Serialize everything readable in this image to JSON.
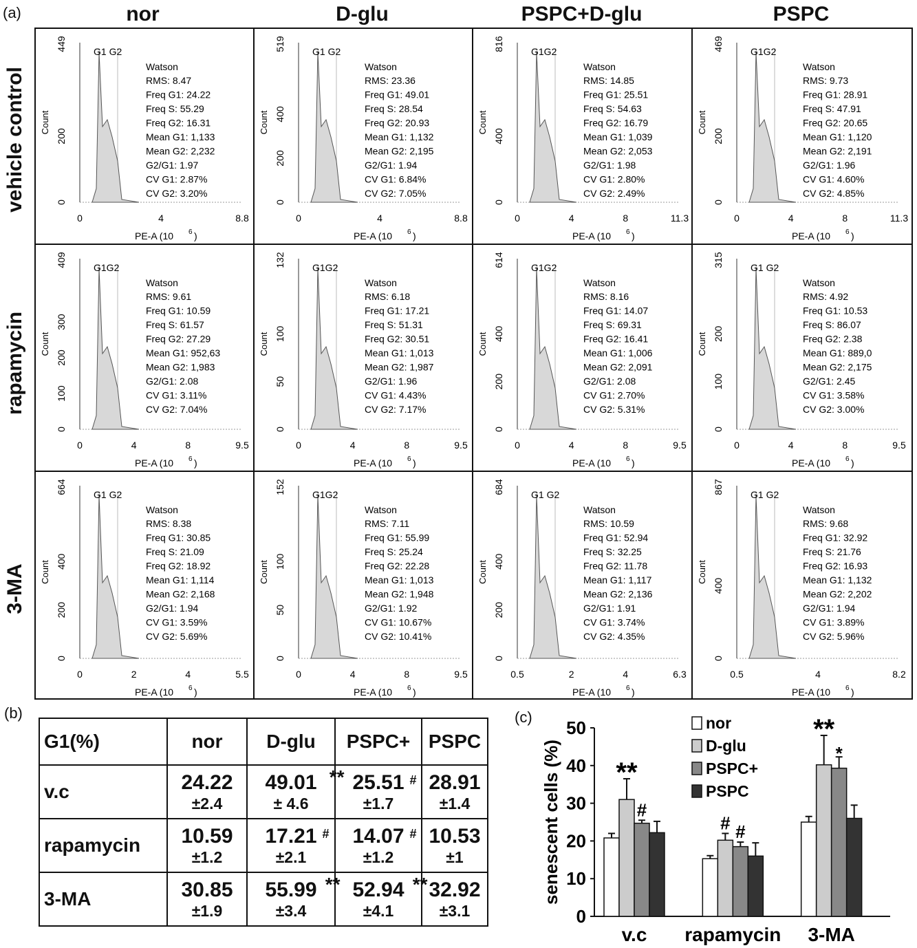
{
  "panel_labels": {
    "a": "(a)",
    "b": "(b)",
    "c": "(c)"
  },
  "columns": [
    "nor",
    "D-glu",
    "PSPC+D-glu",
    "PSPC"
  ],
  "rows": [
    "vehicle control",
    "rapamycin",
    "3-MA"
  ],
  "histogram_common": {
    "y_label": "Count",
    "x_label": "PE-A  (10",
    "x_exp": "6",
    "x_close": ")",
    "model": "Watson"
  },
  "histograms": [
    [
      {
        "ymax": "449",
        "yticks": [
          "200",
          "0"
        ],
        "xticks": [
          "0",
          "4",
          "8.8"
        ],
        "peaks": "G1 G2",
        "stats": [
          "RMS: 8.47",
          "Freq G1: 24.22",
          "Freq S: 55.29",
          "Freq G2: 16.31",
          "Mean G1: 1,133",
          "Mean G2: 2,232",
          "G2/G1: 1.97",
          "CV G1: 2.87%",
          "CV G2: 3.20%"
        ]
      },
      {
        "ymax": "519",
        "yticks": [
          "400",
          "200",
          "0"
        ],
        "xticks": [
          "0",
          "4",
          "8.8"
        ],
        "peaks": "G1 G2",
        "stats": [
          "RMS: 23.36",
          "Freq G1: 49.01",
          "Freq S: 28.54",
          "Freq G2: 20.93",
          "Mean G1: 1,132",
          "Mean G2: 2,195",
          "G2/G1: 1.94",
          "CV G1: 6.84%",
          "CV G2: 7.05%"
        ]
      },
      {
        "ymax": "816",
        "yticks": [
          "400",
          "0"
        ],
        "xticks": [
          "0",
          "4",
          "8",
          "11.3"
        ],
        "peaks": "G1G2",
        "stats": [
          "RMS: 14.85",
          "Freq G1: 25.51",
          "Freq S: 54.63",
          "Freq G2: 16.79",
          "Mean G1: 1,039",
          "Mean G2: 2,053",
          "G2/G1: 1.98",
          "CV G1: 2.80%",
          "CV G2: 2.49%"
        ]
      },
      {
        "ymax": "469",
        "yticks": [
          "200",
          "0"
        ],
        "xticks": [
          "0",
          "4",
          "8",
          "11.3"
        ],
        "peaks": "G1G2",
        "stats": [
          "RMS: 9.73",
          "Freq G1: 28.91",
          "Freq S: 47.91",
          "Freq G2: 20.65",
          "Mean G1: 1,120",
          "Mean G2: 2,191",
          "G2/G1: 1.96",
          "CV G1: 4.60%",
          "CV G2: 4.85%"
        ]
      }
    ],
    [
      {
        "ymax": "409",
        "yticks": [
          "300",
          "200",
          "100",
          "0"
        ],
        "xticks": [
          "0",
          "4",
          "8",
          "9.5"
        ],
        "peaks": "G1G2",
        "stats": [
          "RMS: 9.61",
          "Freq G1: 10.59",
          "Freq S: 61.57",
          "Freq G2: 27.29",
          "Mean G1: 952,63",
          "Mean G2: 1,983",
          "G2/G1: 2.08",
          "CV G1: 3.11%",
          "CV G2: 7.04%"
        ]
      },
      {
        "ymax": "132",
        "yticks": [
          "100",
          "50",
          "0"
        ],
        "xticks": [
          "0",
          "4",
          "8",
          "9.5"
        ],
        "peaks": "G1G2",
        "stats": [
          "RMS: 6.18",
          "Freq G1: 17.21",
          "Freq S: 51.31",
          "Freq G2: 30.51",
          "Mean G1: 1,013",
          "Mean G2: 1,987",
          "G2/G1: 1.96",
          "CV G1: 4.43%",
          "CV G2: 7.17%"
        ]
      },
      {
        "ymax": "614",
        "yticks": [
          "400",
          "200",
          "0"
        ],
        "xticks": [
          "0",
          "4",
          "8",
          "9.5"
        ],
        "peaks": "G1G2",
        "stats": [
          "RMS: 8.16",
          "Freq G1: 14.07",
          "Freq S: 69.31",
          "Freq G2: 16.41",
          "Mean G1: 1,006",
          "Mean G2: 2,091",
          "G2/G1: 2.08",
          "CV G1: 2.70%",
          "CV G2: 5.31%"
        ]
      },
      {
        "ymax": "315",
        "yticks": [
          "200",
          "100",
          "0"
        ],
        "xticks": [
          "0",
          "4",
          "8",
          "9.5"
        ],
        "peaks": "G1  G2",
        "stats": [
          "RMS: 4.92",
          "Freq G1: 10.53",
          "Freq S: 86.07",
          "Freq G2: 2.38",
          "Mean G1: 889,0",
          "Mean G2: 2,175",
          "G2/G1: 2.45",
          "CV G1: 3.58%",
          "CV G2: 3.00%"
        ]
      }
    ],
    [
      {
        "ymax": "664",
        "yticks": [
          "400",
          "200",
          "0"
        ],
        "xticks": [
          "0",
          "2",
          "4",
          "5.5"
        ],
        "peaks": "G1      G2",
        "stats": [
          "RMS: 8.38",
          "Freq G1: 30.85",
          "Freq S: 21.09",
          "Freq G2: 18.92",
          "Mean G1: 1,114",
          "Mean G2: 2,168",
          "G2/G1: 1.94",
          "CV G1: 3.59%",
          "CV G2: 5.69%"
        ]
      },
      {
        "ymax": "152",
        "yticks": [
          "100",
          "50",
          "0"
        ],
        "xticks": [
          "0",
          "4",
          "8",
          "9.5"
        ],
        "peaks": "G1G2",
        "stats": [
          "RMS: 7.11",
          "Freq G1: 55.99",
          "Freq S: 25.24",
          "Freq G2: 22.28",
          "Mean G1: 1,013",
          "Mean G2: 1,948",
          "G2/G1: 1.92",
          "CV G1: 10.67%",
          "CV G2: 10.41%"
        ]
      },
      {
        "ymax": "684",
        "yticks": [
          "400",
          "200",
          "0"
        ],
        "xticks": [
          "0.5",
          "2",
          "4",
          "6.3"
        ],
        "peaks": "G1     G2",
        "stats": [
          "RMS: 10.59",
          "Freq G1: 52.94",
          "Freq S: 32.25",
          "Freq G2: 11.78",
          "Mean G1: 1,117",
          "Mean G2: 2,136",
          "G2/G1: 1.91",
          "CV G1: 3.74%",
          "CV G2: 4.35%"
        ]
      },
      {
        "ymax": "867",
        "yticks": [
          "400",
          "0"
        ],
        "xticks": [
          "0.5",
          "4",
          "8.2"
        ],
        "peaks": "G1  G2",
        "stats": [
          "RMS: 9.68",
          "Freq G1: 32.92",
          "Freq S: 21.76",
          "Freq G2: 16.93",
          "Mean G1: 1,132",
          "Mean G2: 2,202",
          "G2/G1: 1.94",
          "CV G1: 3.89%",
          "CV G2: 5.96%"
        ]
      }
    ]
  ],
  "table_b": {
    "title": "G1(%)",
    "headers": [
      "nor",
      "D-glu",
      "PSPC+",
      "PSPC"
    ],
    "rows": [
      {
        "name": "v.c",
        "cells": [
          {
            "v": "24.22",
            "sd": "±2.4",
            "m": ""
          },
          {
            "v": "49.01",
            "sd": "± 4.6",
            "m": "**"
          },
          {
            "v": "25.51",
            "sd": "±1.7",
            "m": "#"
          },
          {
            "v": "28.91",
            "sd": "±1.4",
            "m": ""
          }
        ]
      },
      {
        "name": "rapamycin",
        "cells": [
          {
            "v": "10.59",
            "sd": "±1.2",
            "m": ""
          },
          {
            "v": "17.21",
            "sd": "±2.1",
            "m": "#"
          },
          {
            "v": "14.07",
            "sd": "±1.2",
            "m": "#"
          },
          {
            "v": "10.53",
            "sd": "±1",
            "m": ""
          }
        ]
      },
      {
        "name": "3-MA",
        "cells": [
          {
            "v": "30.85",
            "sd": "±1.9",
            "m": ""
          },
          {
            "v": "55.99",
            "sd": "±3.4",
            "m": "**"
          },
          {
            "v": "52.94",
            "sd": "±4.1",
            "m": "**"
          },
          {
            "v": "32.92",
            "sd": "±3.1",
            "m": ""
          }
        ]
      }
    ]
  },
  "chart_data": {
    "type": "bar",
    "title": "",
    "xlabel": "",
    "ylabel": "senescent cells (%)",
    "ylim": [
      0,
      50
    ],
    "yticks": [
      "0",
      "10",
      "20",
      "30",
      "40",
      "50"
    ],
    "categories": [
      "v.c",
      "rapamycin",
      "3-MA"
    ],
    "legend_position": "top",
    "series": [
      {
        "name": "nor",
        "color": "#ffffff",
        "values": [
          20.8,
          15.3,
          25.0
        ],
        "errors": [
          1.2,
          0.8,
          1.5
        ],
        "marks": [
          "",
          "",
          ""
        ]
      },
      {
        "name": "D-glu",
        "color": "#cccccc",
        "values": [
          31.0,
          20.2,
          40.2
        ],
        "errors": [
          5.5,
          1.8,
          7.8
        ],
        "marks": [
          "**",
          "#",
          "**"
        ]
      },
      {
        "name": "PSPC+",
        "color": "#888888",
        "values": [
          24.7,
          18.5,
          39.3
        ],
        "errors": [
          0.8,
          1.2,
          3.0
        ],
        "marks": [
          "#",
          "#",
          "*"
        ]
      },
      {
        "name": "PSPC",
        "color": "#333333",
        "values": [
          22.2,
          16.0,
          26.0
        ],
        "errors": [
          3.0,
          3.5,
          3.5
        ],
        "marks": [
          "",
          "",
          ""
        ]
      }
    ]
  }
}
